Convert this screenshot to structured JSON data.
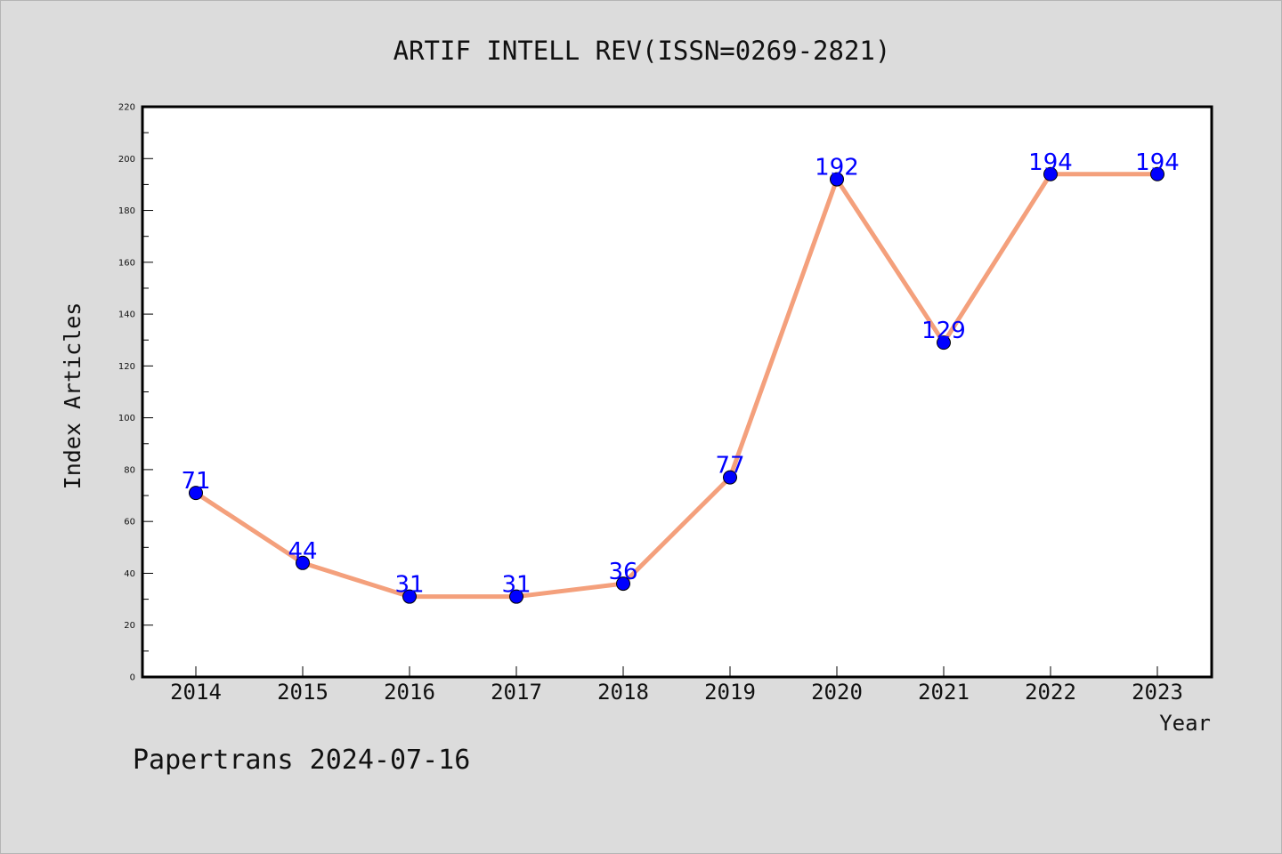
{
  "chart_data": {
    "type": "line",
    "title": "ARTIF INTELL REV(ISSN=0269-2821)",
    "xlabel": "Year",
    "ylabel": "Index Articles",
    "x": [
      "2014",
      "2015",
      "2016",
      "2017",
      "2018",
      "2019",
      "2020",
      "2021",
      "2022",
      "2023"
    ],
    "series": [
      {
        "values": [
          71,
          44,
          31,
          31,
          36,
          77,
          192,
          129,
          194,
          194
        ]
      }
    ],
    "ylim": [
      0,
      220
    ],
    "yticks": [
      0,
      20,
      40,
      60,
      80,
      100,
      120,
      140,
      160,
      180,
      200,
      220
    ],
    "grid": false,
    "line_color": "#f4a07c",
    "marker_color": "#0000ff",
    "label_color": "#0000ff"
  },
  "footer": "Papertrans 2024-07-16"
}
